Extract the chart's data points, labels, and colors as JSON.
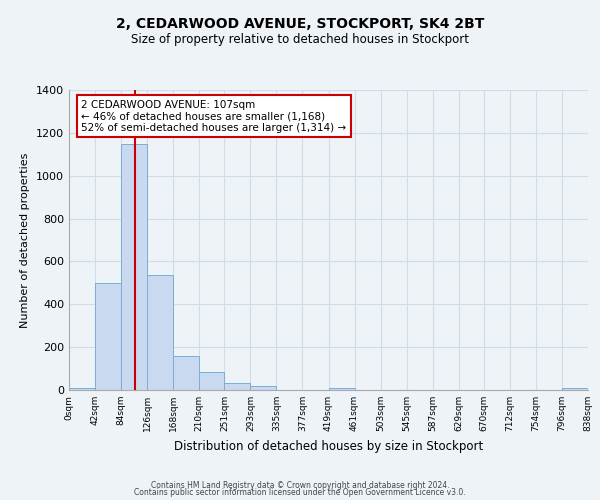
{
  "title_line1": "2, CEDARWOOD AVENUE, STOCKPORT, SK4 2BT",
  "title_line2": "Size of property relative to detached houses in Stockport",
  "xlabel": "Distribution of detached houses by size in Stockport",
  "ylabel": "Number of detached properties",
  "bar_edges": [
    0,
    42,
    84,
    126,
    168,
    210,
    251,
    293,
    335,
    377,
    419,
    461,
    503,
    545,
    587,
    629,
    670,
    712,
    754,
    796,
    838
  ],
  "bar_heights": [
    10,
    500,
    1150,
    535,
    160,
    85,
    35,
    20,
    0,
    0,
    10,
    0,
    0,
    0,
    0,
    0,
    0,
    0,
    0,
    10
  ],
  "bar_color": "#c9d9f0",
  "bar_edge_color": "#7badd4",
  "property_size": 107,
  "red_line_color": "#cc0000",
  "ylim": [
    0,
    1400
  ],
  "yticks": [
    0,
    200,
    400,
    600,
    800,
    1000,
    1200,
    1400
  ],
  "xtick_labels": [
    "0sqm",
    "42sqm",
    "84sqm",
    "126sqm",
    "168sqm",
    "210sqm",
    "251sqm",
    "293sqm",
    "335sqm",
    "377sqm",
    "419sqm",
    "461sqm",
    "503sqm",
    "545sqm",
    "587sqm",
    "629sqm",
    "670sqm",
    "712sqm",
    "754sqm",
    "796sqm",
    "838sqm"
  ],
  "annotation_text": "2 CEDARWOOD AVENUE: 107sqm\n← 46% of detached houses are smaller (1,168)\n52% of semi-detached houses are larger (1,314) →",
  "annotation_box_color": "#ffffff",
  "annotation_box_edge": "#cc0000",
  "grid_color": "#d0dce8",
  "background_color": "#eef3f8",
  "footer_line1": "Contains HM Land Registry data © Crown copyright and database right 2024.",
  "footer_line2": "Contains public sector information licensed under the Open Government Licence v3.0."
}
